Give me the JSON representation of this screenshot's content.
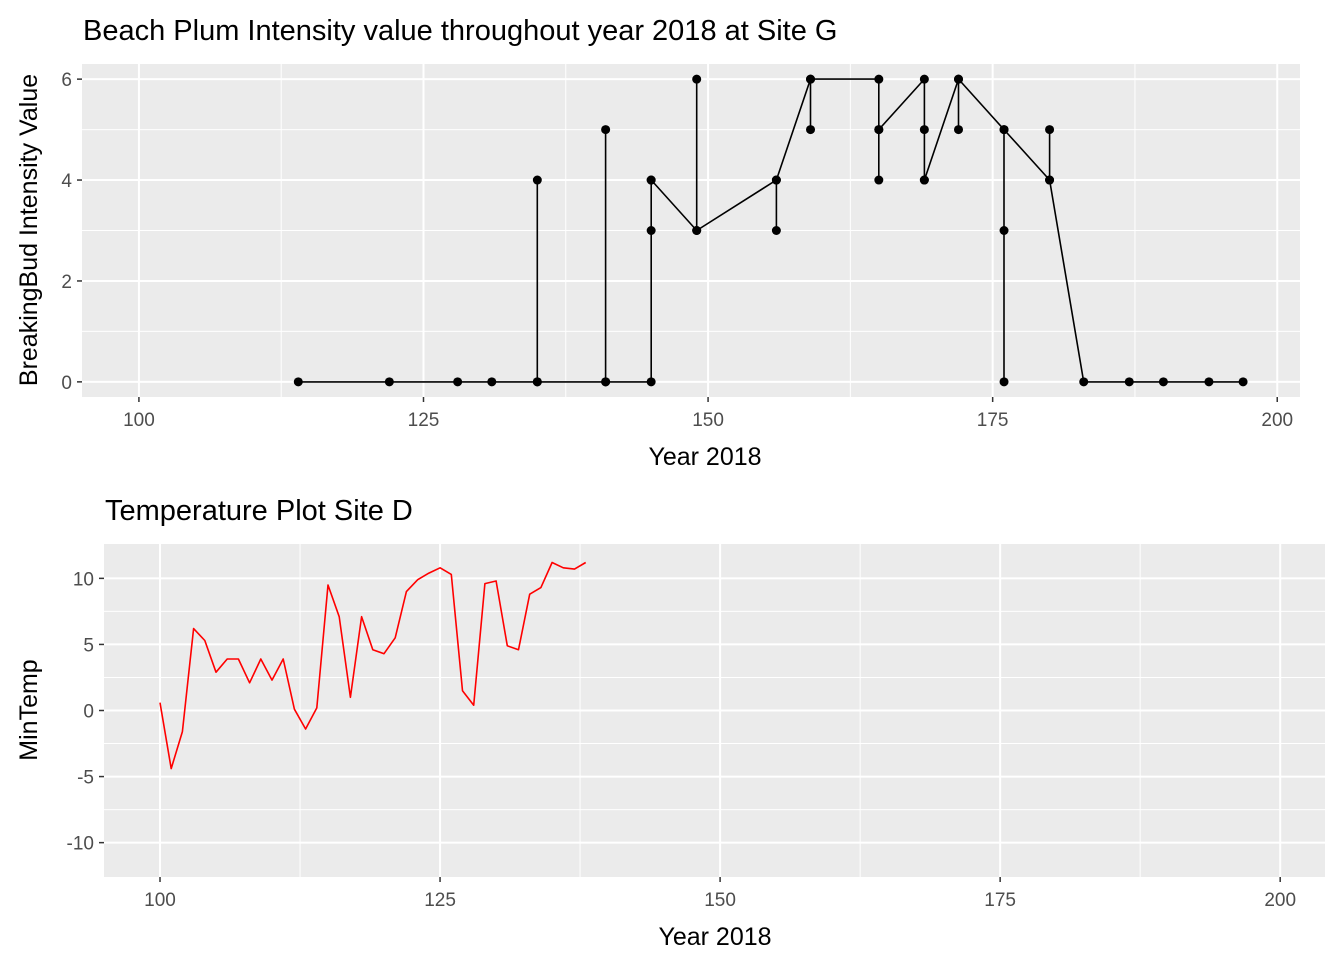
{
  "chart_data": [
    {
      "type": "line",
      "title": "Beach Plum Intensity value throughout year 2018 at Site G",
      "xlabel": "Year 2018",
      "ylabel": "BreakingBud Intensity Value",
      "xlim": [
        95,
        202
      ],
      "ylim": [
        -0.3,
        6.3
      ],
      "x_ticks": [
        100,
        125,
        150,
        175,
        200
      ],
      "y_ticks": [
        0,
        2,
        4,
        6
      ],
      "x_tick_labels": [
        "100",
        "125",
        "150",
        "175",
        "200"
      ],
      "y_tick_labels": [
        "0",
        "2",
        "4",
        "6"
      ],
      "grid": true,
      "markers": true,
      "series": [
        {
          "color": "#000000",
          "x": [
            114,
            122,
            128,
            131,
            135,
            135,
            135,
            141,
            141,
            141,
            145,
            145,
            145,
            145,
            149,
            149,
            149,
            156,
            156,
            156,
            159,
            159,
            159,
            165,
            165,
            165,
            165,
            169,
            169,
            169,
            169,
            172,
            172,
            172,
            176,
            176,
            176,
            176,
            180,
            180,
            180,
            183,
            187,
            190,
            194,
            197
          ],
          "y": [
            0,
            0,
            0,
            0,
            0,
            4,
            0,
            0,
            5,
            0,
            0,
            3,
            4,
            4,
            3,
            6,
            3,
            4,
            3,
            4,
            6,
            5,
            6,
            6,
            4,
            5,
            5,
            6,
            5,
            4,
            4,
            6,
            5,
            6,
            5,
            0,
            3,
            5,
            4,
            5,
            4,
            0,
            0,
            0,
            0,
            0
          ]
        }
      ]
    },
    {
      "type": "line",
      "title": "Temperature Plot Site D",
      "xlabel": "Year 2018",
      "ylabel": "MinTemp",
      "xlim": [
        95,
        204
      ],
      "ylim": [
        -12.6,
        12.6
      ],
      "x_ticks": [
        100,
        125,
        150,
        175,
        200
      ],
      "y_ticks": [
        -10,
        -5,
        0,
        5,
        10
      ],
      "x_tick_labels": [
        "100",
        "125",
        "150",
        "175",
        "200"
      ],
      "y_tick_labels": [
        "-10",
        "-5",
        "0",
        "5",
        "10"
      ],
      "grid": true,
      "markers": false,
      "series": [
        {
          "color": "#ff0000",
          "x": [
            100,
            101,
            102,
            103,
            104,
            105,
            106,
            107,
            108,
            109,
            110,
            111,
            112,
            113,
            114,
            115,
            116,
            117,
            118,
            119,
            120,
            121,
            122,
            123,
            124,
            125,
            126,
            127,
            128,
            129,
            130,
            131,
            132,
            133,
            134,
            135,
            136,
            137,
            138
          ],
          "y": [
            0.6,
            -4.4,
            -1.6,
            6.2,
            5.3,
            2.9,
            3.9,
            3.9,
            2.1,
            3.9,
            2.3,
            3.9,
            0.1,
            -1.4,
            0.2,
            9.5,
            7.1,
            1.0,
            7.1,
            4.6,
            4.3,
            5.5,
            9.0,
            9.9,
            10.4,
            10.8,
            10.3,
            1.5,
            0.4,
            9.6,
            9.8,
            4.9,
            4.6,
            8.8,
            9.3,
            11.2,
            10.8,
            10.7,
            11.2
          ]
        }
      ]
    }
  ]
}
